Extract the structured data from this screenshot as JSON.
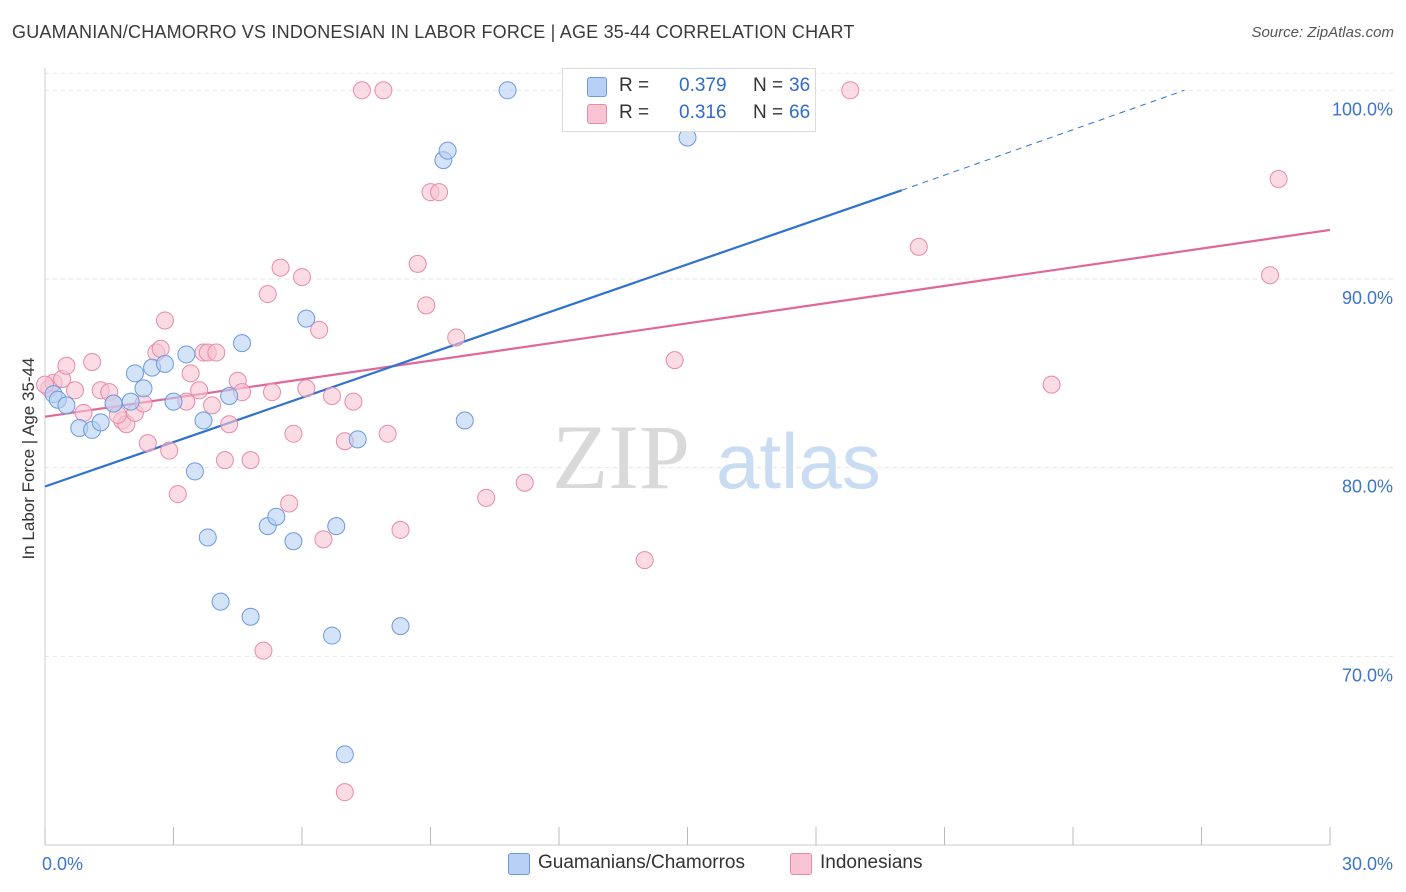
{
  "title": "GUAMANIAN/CHAMORRO VS INDONESIAN IN LABOR FORCE | AGE 35-44 CORRELATION CHART",
  "source": "Source: ZipAtlas.com",
  "watermark": {
    "zip": "ZIP",
    "atlas": "atlas"
  },
  "legend": {
    "rows": [
      {
        "r_label": "R =",
        "r_value": "0.379",
        "n_label": "N =",
        "n_value": "36"
      },
      {
        "r_label": "R =",
        "r_value": "0.316",
        "n_label": "N =",
        "n_value": "66"
      }
    ]
  },
  "colors": {
    "blue_fill": "#b8d0f3",
    "blue_stroke": "#6a9be0",
    "blue_line": "#2f72d0",
    "pink_fill": "#f8c4d4",
    "pink_stroke": "#e98aa8",
    "pink_line": "#e0679a",
    "axis_text": "#3d74cc",
    "grid": "#e3e3e3"
  },
  "chart_data": {
    "type": "scatter",
    "title": "GUAMANIAN/CHAMORRO VS INDONESIAN IN LABOR FORCE | AGE 35-44 CORRELATION CHART",
    "xlabel": "",
    "ylabel": "In Labor Force | Age 35-44",
    "xlim": [
      0,
      30
    ],
    "ylim": [
      60,
      101.5
    ],
    "x_tick_labels": [
      {
        "value": 0,
        "label": "0.0%"
      },
      {
        "value": 30,
        "label": "30.0%"
      }
    ],
    "y_tick_labels": [
      {
        "value": 70,
        "label": "70.0%"
      },
      {
        "value": 80,
        "label": "80.0%"
      },
      {
        "value": 90,
        "label": "90.0%"
      },
      {
        "value": 100,
        "label": "100.0%"
      }
    ],
    "grid": true,
    "legend_position": "top-center",
    "series": [
      {
        "name": "Guamanians/Chamorros",
        "color": "blue",
        "r": 0.379,
        "n": 36,
        "trend": {
          "x0": 0,
          "y0": 79.0,
          "x1": 20.0,
          "y1": 94.7,
          "dash_to_x": 26.6,
          "dash_to_y": 100.0
        },
        "points": [
          [
            0.2,
            83.9
          ],
          [
            0.3,
            83.6
          ],
          [
            0.5,
            83.3
          ],
          [
            0.8,
            82.1
          ],
          [
            1.1,
            82.0
          ],
          [
            1.3,
            82.4
          ],
          [
            1.6,
            83.4
          ],
          [
            2.0,
            83.5
          ],
          [
            2.1,
            85.0
          ],
          [
            2.3,
            84.2
          ],
          [
            2.5,
            85.3
          ],
          [
            2.8,
            85.5
          ],
          [
            3.0,
            83.5
          ],
          [
            3.3,
            86.0
          ],
          [
            3.5,
            79.8
          ],
          [
            3.7,
            82.5
          ],
          [
            3.8,
            76.3
          ],
          [
            4.1,
            72.9
          ],
          [
            4.3,
            83.8
          ],
          [
            4.6,
            86.6
          ],
          [
            4.8,
            72.1
          ],
          [
            5.2,
            76.9
          ],
          [
            5.4,
            77.4
          ],
          [
            5.8,
            76.1
          ],
          [
            6.1,
            87.9
          ],
          [
            6.7,
            71.1
          ],
          [
            6.8,
            76.9
          ],
          [
            7.3,
            81.5
          ],
          [
            8.3,
            71.6
          ],
          [
            9.3,
            96.3
          ],
          [
            9.4,
            96.8
          ],
          [
            9.8,
            82.5
          ],
          [
            10.8,
            100.0
          ],
          [
            15.0,
            97.5
          ],
          [
            16.1,
            100.0
          ],
          [
            7.0,
            64.8
          ]
        ]
      },
      {
        "name": "Indonesians",
        "color": "pink",
        "r": 0.316,
        "n": 66,
        "trend": {
          "x0": 0,
          "y0": 82.7,
          "x1": 30.0,
          "y1": 92.6
        },
        "points": [
          [
            0.1,
            84.2
          ],
          [
            0.2,
            84.5
          ],
          [
            0.4,
            84.7
          ],
          [
            0.5,
            85.4
          ],
          [
            0.7,
            84.1
          ],
          [
            0.9,
            82.9
          ],
          [
            1.1,
            85.6
          ],
          [
            1.3,
            84.1
          ],
          [
            1.5,
            84.0
          ],
          [
            1.6,
            83.4
          ],
          [
            1.8,
            82.5
          ],
          [
            1.9,
            82.3
          ],
          [
            2.1,
            82.9
          ],
          [
            2.3,
            83.4
          ],
          [
            2.4,
            81.3
          ],
          [
            2.6,
            86.1
          ],
          [
            2.7,
            86.3
          ],
          [
            2.8,
            87.8
          ],
          [
            2.9,
            80.9
          ],
          [
            3.1,
            78.6
          ],
          [
            3.3,
            83.5
          ],
          [
            3.4,
            85.0
          ],
          [
            3.6,
            84.1
          ],
          [
            3.7,
            86.1
          ],
          [
            3.8,
            86.1
          ],
          [
            3.9,
            83.3
          ],
          [
            4.0,
            86.1
          ],
          [
            4.2,
            80.4
          ],
          [
            4.3,
            82.3
          ],
          [
            4.5,
            84.6
          ],
          [
            4.6,
            84.0
          ],
          [
            4.8,
            80.4
          ],
          [
            5.1,
            70.3
          ],
          [
            5.2,
            89.2
          ],
          [
            5.3,
            84.0
          ],
          [
            5.5,
            90.6
          ],
          [
            5.7,
            78.1
          ],
          [
            5.8,
            81.8
          ],
          [
            6.0,
            90.1
          ],
          [
            6.1,
            84.2
          ],
          [
            6.4,
            87.3
          ],
          [
            6.5,
            76.2
          ],
          [
            6.7,
            83.8
          ],
          [
            7.0,
            81.4
          ],
          [
            7.2,
            83.5
          ],
          [
            7.4,
            100.0
          ],
          [
            7.9,
            100.0
          ],
          [
            8.0,
            81.8
          ],
          [
            8.3,
            76.7
          ],
          [
            8.7,
            90.8
          ],
          [
            8.9,
            88.6
          ],
          [
            9.0,
            94.6
          ],
          [
            9.2,
            94.6
          ],
          [
            9.6,
            86.9
          ],
          [
            10.3,
            78.4
          ],
          [
            11.2,
            79.2
          ],
          [
            14.0,
            75.1
          ],
          [
            14.7,
            85.7
          ],
          [
            18.8,
            100.0
          ],
          [
            20.4,
            91.7
          ],
          [
            23.5,
            84.4
          ],
          [
            28.6,
            90.2
          ],
          [
            28.8,
            95.3
          ],
          [
            7.0,
            62.8
          ],
          [
            0.0,
            84.4
          ],
          [
            1.7,
            82.8
          ]
        ]
      }
    ]
  }
}
